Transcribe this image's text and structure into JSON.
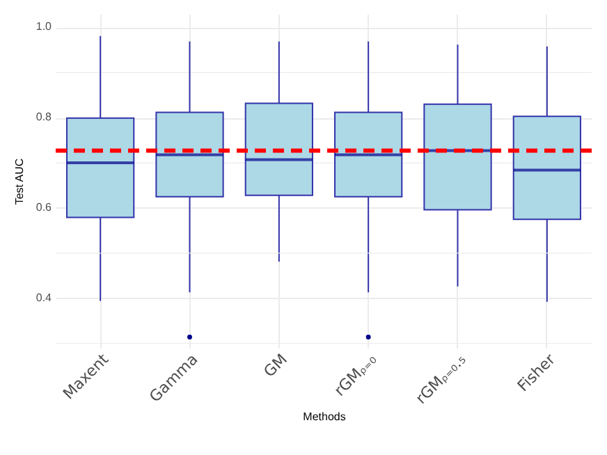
{
  "chart_data": {
    "type": "box",
    "xlabel": "Methods",
    "ylabel": "Test AUC",
    "categories": [
      "Maxent",
      "Gamma",
      "GM",
      "rGMᵨ₌₀",
      "rGMᵨ₌₀.₅",
      "Fisher"
    ],
    "boxes": [
      {
        "low": 0.394,
        "q1": 0.579,
        "median": 0.7,
        "q3": 0.799,
        "high": 0.981
      },
      {
        "low": 0.413,
        "q1": 0.625,
        "median": 0.718,
        "q3": 0.812,
        "high": 0.969,
        "outliers": [
          0.314
        ]
      },
      {
        "low": 0.481,
        "q1": 0.628,
        "median": 0.707,
        "q3": 0.832,
        "high": 0.969
      },
      {
        "low": 0.413,
        "q1": 0.625,
        "median": 0.718,
        "q3": 0.812,
        "high": 0.969,
        "outliers": [
          0.314
        ]
      },
      {
        "low": 0.426,
        "q1": 0.596,
        "median": 0.727,
        "q3": 0.83,
        "high": 0.962
      },
      {
        "low": 0.392,
        "q1": 0.575,
        "median": 0.684,
        "q3": 0.803,
        "high": 0.958
      }
    ],
    "color": "#add8e6",
    "ylim": [
      0.29,
      1.03
    ],
    "yticks": [
      {
        "value": 0.3,
        "label": null
      },
      0.4,
      {
        "value": 0.5,
        "label": null
      },
      0.6,
      {
        "value": 0.7,
        "label": null
      },
      0.8,
      {
        "value": 0.9,
        "label": null
      },
      {
        "value": 1.0,
        "label": "1.0"
      }
    ],
    "ref_lines": [
      {
        "axis": "y",
        "value": 0.727,
        "color": "#ff0000",
        "line_style": "dashed"
      }
    ],
    "grid": true
  }
}
